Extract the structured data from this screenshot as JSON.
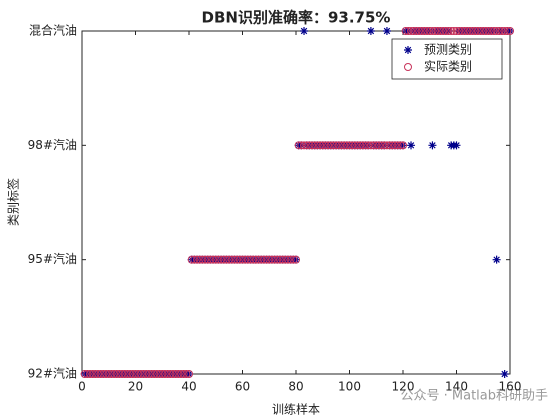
{
  "chart_data": {
    "type": "scatter",
    "title": "DBN识别准确率：93.75%",
    "xlabel": "训练样本",
    "ylabel": "类别标签",
    "watermark": "公众号 · Matlab科研助手",
    "x": [
      1,
      2,
      3,
      4,
      5,
      6,
      7,
      8,
      9,
      10,
      11,
      12,
      13,
      14,
      15,
      16,
      17,
      18,
      19,
      20,
      21,
      22,
      23,
      24,
      25,
      26,
      27,
      28,
      29,
      30,
      31,
      32,
      33,
      34,
      35,
      36,
      37,
      38,
      39,
      40,
      41,
      42,
      43,
      44,
      45,
      46,
      47,
      48,
      49,
      50,
      51,
      52,
      53,
      54,
      55,
      56,
      57,
      58,
      59,
      60,
      61,
      62,
      63,
      64,
      65,
      66,
      67,
      68,
      69,
      70,
      71,
      72,
      73,
      74,
      75,
      76,
      77,
      78,
      79,
      80,
      81,
      82,
      83,
      84,
      85,
      86,
      87,
      88,
      89,
      90,
      91,
      92,
      93,
      94,
      95,
      96,
      97,
      98,
      99,
      100,
      101,
      102,
      103,
      104,
      105,
      106,
      107,
      108,
      109,
      110,
      111,
      112,
      113,
      114,
      115,
      116,
      117,
      118,
      119,
      120,
      121,
      122,
      123,
      124,
      125,
      126,
      127,
      128,
      129,
      130,
      131,
      132,
      133,
      134,
      135,
      136,
      137,
      138,
      139,
      140,
      141,
      142,
      143,
      144,
      145,
      146,
      147,
      148,
      149,
      150,
      151,
      152,
      153,
      154,
      155,
      156,
      157,
      158,
      159,
      160
    ],
    "series": [
      {
        "name": "预测类别",
        "color": "#00008b",
        "marker": "star",
        "values": [
          1,
          1,
          1,
          1,
          1,
          1,
          1,
          1,
          1,
          1,
          1,
          1,
          1,
          1,
          1,
          1,
          1,
          1,
          1,
          1,
          1,
          1,
          1,
          1,
          1,
          1,
          1,
          1,
          1,
          1,
          1,
          1,
          1,
          1,
          1,
          1,
          1,
          1,
          1,
          1,
          2,
          2,
          2,
          2,
          2,
          2,
          2,
          2,
          2,
          2,
          2,
          2,
          2,
          2,
          2,
          2,
          2,
          2,
          2,
          2,
          2,
          2,
          2,
          2,
          2,
          2,
          2,
          2,
          2,
          2,
          2,
          2,
          2,
          2,
          2,
          2,
          2,
          2,
          2,
          2,
          3,
          3,
          4,
          3,
          3,
          3,
          3,
          3,
          3,
          3,
          3,
          3,
          3,
          3,
          3,
          3,
          3,
          3,
          3,
          3,
          3,
          3,
          3,
          3,
          3,
          3,
          3,
          4,
          3,
          3,
          3,
          3,
          3,
          4,
          3,
          3,
          3,
          3,
          3,
          3,
          4,
          4,
          3,
          4,
          4,
          4,
          4,
          4,
          4,
          4,
          3,
          4,
          4,
          4,
          4,
          4,
          4,
          3,
          3,
          3,
          4,
          4,
          4,
          4,
          4,
          4,
          4,
          4,
          4,
          4,
          4,
          4,
          4,
          4,
          2,
          4,
          4,
          1,
          4,
          4
        ]
      },
      {
        "name": "实际类别",
        "color": "#c8325a",
        "marker": "circle",
        "values": [
          1,
          1,
          1,
          1,
          1,
          1,
          1,
          1,
          1,
          1,
          1,
          1,
          1,
          1,
          1,
          1,
          1,
          1,
          1,
          1,
          1,
          1,
          1,
          1,
          1,
          1,
          1,
          1,
          1,
          1,
          1,
          1,
          1,
          1,
          1,
          1,
          1,
          1,
          1,
          1,
          2,
          2,
          2,
          2,
          2,
          2,
          2,
          2,
          2,
          2,
          2,
          2,
          2,
          2,
          2,
          2,
          2,
          2,
          2,
          2,
          2,
          2,
          2,
          2,
          2,
          2,
          2,
          2,
          2,
          2,
          2,
          2,
          2,
          2,
          2,
          2,
          2,
          2,
          2,
          2,
          3,
          3,
          3,
          3,
          3,
          3,
          3,
          3,
          3,
          3,
          3,
          3,
          3,
          3,
          3,
          3,
          3,
          3,
          3,
          3,
          3,
          3,
          3,
          3,
          3,
          3,
          3,
          3,
          3,
          3,
          3,
          3,
          3,
          3,
          3,
          3,
          3,
          3,
          3,
          3,
          4,
          4,
          4,
          4,
          4,
          4,
          4,
          4,
          4,
          4,
          4,
          4,
          4,
          4,
          4,
          4,
          4,
          4,
          4,
          4,
          4,
          4,
          4,
          4,
          4,
          4,
          4,
          4,
          4,
          4,
          4,
          4,
          4,
          4,
          4,
          4,
          4,
          4,
          4,
          4
        ]
      }
    ],
    "xlim": [
      0,
      160
    ],
    "xticks": [
      0,
      20,
      40,
      60,
      80,
      100,
      120,
      140,
      160
    ],
    "ylim": [
      1,
      4
    ],
    "yticks": [
      {
        "value": 1,
        "label": "92#汽油"
      },
      {
        "value": 2,
        "label": "95#汽油"
      },
      {
        "value": 3,
        "label": "98#汽油"
      },
      {
        "value": 4,
        "label": "混合汽油"
      }
    ],
    "legend": "northeast"
  }
}
